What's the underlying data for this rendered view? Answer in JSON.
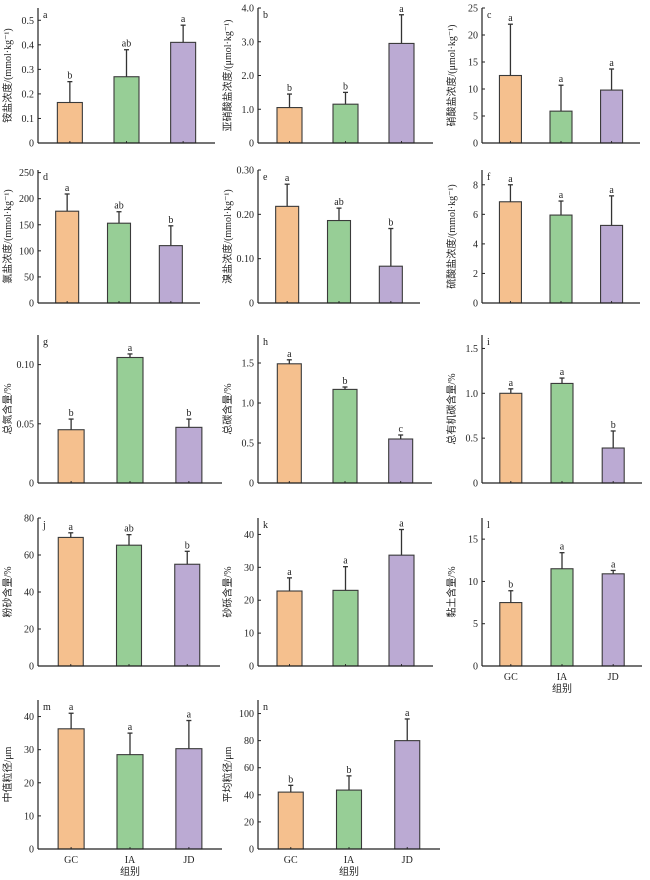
{
  "colors": {
    "GC": "#F5C08E",
    "IA": "#97CE96",
    "JD": "#BBAAD3",
    "outline": "#3a3a3a",
    "axis": "#222222"
  },
  "chart_data": [
    {
      "type": "bar",
      "panel": "a",
      "categories": [
        "GC",
        "IA",
        "JD"
      ],
      "ylabel": "铵盐浓度/(mmol·kg⁻¹)",
      "values": [
        0.165,
        0.27,
        0.41
      ],
      "error_upper": [
        0.25,
        0.38,
        0.48
      ],
      "significance": [
        "b",
        "ab",
        "a"
      ],
      "ylim": [
        0,
        0.55
      ],
      "yticks": [
        0,
        0.1,
        0.2,
        0.3,
        0.4,
        0.5
      ],
      "ytick_labels": [
        "0",
        "0.1",
        "0.2",
        "0.3",
        "0.4",
        "0.5"
      ],
      "xlabel": "",
      "show_xticks": false
    },
    {
      "type": "bar",
      "panel": "b",
      "categories": [
        "GC",
        "IA",
        "JD"
      ],
      "ylabel": "亚硝酸盐浓度/(μmol·kg⁻¹)",
      "values": [
        1.05,
        1.15,
        2.95
      ],
      "error_upper": [
        1.45,
        1.5,
        3.8
      ],
      "significance": [
        "b",
        "b",
        "a"
      ],
      "ylim": [
        0,
        4.0
      ],
      "yticks": [
        0,
        1,
        2,
        3,
        4
      ],
      "ytick_labels": [
        "0",
        "1.0",
        "2.0",
        "3.0",
        "4.0"
      ],
      "xlabel": "",
      "show_xticks": false
    },
    {
      "type": "bar",
      "panel": "c",
      "categories": [
        "GC",
        "IA",
        "JD"
      ],
      "ylabel": "硝酸盐浓度/(μmol·kg⁻¹)",
      "values": [
        12.5,
        5.9,
        9.8
      ],
      "error_upper": [
        22,
        10.7,
        13.7
      ],
      "significance": [
        "a",
        "a",
        "a"
      ],
      "ylim": [
        0,
        25
      ],
      "yticks": [
        0,
        5,
        10,
        15,
        20,
        25
      ],
      "ytick_labels": [
        "0",
        "5",
        "10",
        "15",
        "20",
        "25"
      ],
      "xlabel": "",
      "show_xticks": false
    },
    {
      "type": "bar",
      "panel": "d",
      "categories": [
        "GC",
        "IA",
        "JD"
      ],
      "ylabel": "氯盐浓度/(mmol·kg⁻¹)",
      "values": [
        176,
        153,
        110
      ],
      "error_upper": [
        209,
        175,
        148
      ],
      "significance": [
        "a",
        "ab",
        "b"
      ],
      "ylim": [
        0,
        255
      ],
      "yticks": [
        0,
        50,
        100,
        150,
        200,
        250
      ],
      "ytick_labels": [
        "0",
        "50",
        "100",
        "150",
        "200",
        "250"
      ],
      "xlabel": "",
      "show_xticks": false
    },
    {
      "type": "bar",
      "panel": "e",
      "categories": [
        "GC",
        "IA",
        "JD"
      ],
      "ylabel": "溴盐浓度/(mmol·kg⁻¹)",
      "values": [
        0.218,
        0.186,
        0.083
      ],
      "error_upper": [
        0.268,
        0.214,
        0.168
      ],
      "significance": [
        "a",
        "ab",
        "b"
      ],
      "ylim": [
        0,
        0.3
      ],
      "yticks": [
        0,
        0.1,
        0.2,
        0.3
      ],
      "ytick_labels": [
        "0",
        "0.10",
        "0.20",
        "0.30"
      ],
      "xlabel": "",
      "show_xticks": false
    },
    {
      "type": "bar",
      "panel": "f",
      "categories": [
        "GC",
        "IA",
        "JD"
      ],
      "ylabel": "硫酸盐浓度/(mmol·kg⁻¹)",
      "values": [
        6.85,
        5.95,
        5.25
      ],
      "error_upper": [
        8.0,
        6.9,
        7.25
      ],
      "significance": [
        "a",
        "a",
        "a"
      ],
      "ylim": [
        0,
        9
      ],
      "yticks": [
        0,
        2,
        4,
        6,
        8
      ],
      "ytick_labels": [
        "0",
        "2",
        "4",
        "6",
        "8"
      ],
      "xlabel": "",
      "show_xticks": false
    },
    {
      "type": "bar",
      "panel": "g",
      "categories": [
        "GC",
        "IA",
        "JD"
      ],
      "ylabel": "总氮含量/%",
      "values": [
        0.045,
        0.106,
        0.047
      ],
      "error_upper": [
        0.054,
        0.109,
        0.054
      ],
      "significance": [
        "b",
        "a",
        "b"
      ],
      "ylim": [
        0,
        0.125
      ],
      "yticks": [
        0,
        0.05,
        0.1
      ],
      "ytick_labels": [
        "0",
        "0.05",
        "0.10"
      ],
      "xlabel": "",
      "show_xticks": false
    },
    {
      "type": "bar",
      "panel": "h",
      "categories": [
        "GC",
        "IA",
        "JD"
      ],
      "ylabel": "总碳含量/%",
      "values": [
        1.49,
        1.17,
        0.55
      ],
      "error_upper": [
        1.54,
        1.2,
        0.6
      ],
      "significance": [
        "a",
        "b",
        "c"
      ],
      "ylim": [
        0,
        1.85
      ],
      "yticks": [
        0,
        0.5,
        1.0,
        1.5
      ],
      "ytick_labels": [
        "0",
        "0.5",
        "1.0",
        "1.5"
      ],
      "xlabel": "",
      "show_xticks": false
    },
    {
      "type": "bar",
      "panel": "i",
      "categories": [
        "GC",
        "IA",
        "JD"
      ],
      "ylabel": "总有机碳含量/%",
      "values": [
        1.0,
        1.11,
        0.39
      ],
      "error_upper": [
        1.05,
        1.17,
        0.58
      ],
      "significance": [
        "a",
        "a",
        "b"
      ],
      "ylim": [
        0,
        1.65
      ],
      "yticks": [
        0,
        0.5,
        1.0,
        1.5
      ],
      "ytick_labels": [
        "0",
        "0.5",
        "1.0",
        "1.5"
      ],
      "xlabel": "",
      "show_xticks": false
    },
    {
      "type": "bar",
      "panel": "j",
      "categories": [
        "GC",
        "IA",
        "JD"
      ],
      "ylabel": "粉砂含量/%",
      "values": [
        69.5,
        65.3,
        55
      ],
      "error_upper": [
        72,
        71,
        62
      ],
      "significance": [
        "a",
        "ab",
        "b"
      ],
      "ylim": [
        0,
        80
      ],
      "yticks": [
        0,
        20,
        40,
        60,
        80
      ],
      "ytick_labels": [
        "0",
        "20",
        "40",
        "60",
        "80"
      ],
      "xlabel": "",
      "show_xticks": false
    },
    {
      "type": "bar",
      "panel": "k",
      "categories": [
        "GC",
        "IA",
        "JD"
      ],
      "ylabel": "砂砾含量/%",
      "values": [
        22.8,
        23,
        33.7
      ],
      "error_upper": [
        26.8,
        30.2,
        41.5
      ],
      "significance": [
        "a",
        "a",
        "a"
      ],
      "ylim": [
        0,
        45
      ],
      "yticks": [
        0,
        10,
        20,
        30,
        40
      ],
      "ytick_labels": [
        "0",
        "10",
        "20",
        "30",
        "40"
      ],
      "xlabel": "",
      "show_xticks": false
    },
    {
      "type": "bar",
      "panel": "l",
      "categories": [
        "GC",
        "IA",
        "JD"
      ],
      "ylabel": "黏土含量/%",
      "values": [
        7.5,
        11.5,
        10.9
      ],
      "error_upper": [
        8.9,
        13.4,
        11.3
      ],
      "significance": [
        "b",
        "a",
        "a"
      ],
      "ylim": [
        0,
        17.5
      ],
      "yticks": [
        0,
        5,
        10,
        15
      ],
      "ytick_labels": [
        "0",
        "5",
        "10",
        "15"
      ],
      "xlabel": "组别",
      "show_xticks": true
    },
    {
      "type": "bar",
      "panel": "m",
      "categories": [
        "GC",
        "IA",
        "JD"
      ],
      "ylabel": "中值粒径/μm",
      "values": [
        36.3,
        28.5,
        30.3
      ],
      "error_upper": [
        41,
        35,
        38.8
      ],
      "significance": [
        "a",
        "a",
        "a"
      ],
      "ylim": [
        0,
        45
      ],
      "yticks": [
        0,
        10,
        20,
        30,
        40
      ],
      "ytick_labels": [
        "0",
        "10",
        "20",
        "30",
        "40"
      ],
      "xlabel": "组别",
      "show_xticks": true
    },
    {
      "type": "bar",
      "panel": "n",
      "categories": [
        "GC",
        "IA",
        "JD"
      ],
      "ylabel": "平均粒径/μm",
      "values": [
        42,
        43.5,
        80
      ],
      "error_upper": [
        47,
        54,
        96
      ],
      "significance": [
        "b",
        "b",
        "a"
      ],
      "ylim": [
        0,
        110
      ],
      "yticks": [
        0,
        20,
        40,
        60,
        80,
        100
      ],
      "ytick_labels": [
        "0",
        "20",
        "40",
        "60",
        "80",
        "100"
      ],
      "xlabel": "组别",
      "show_xticks": true
    }
  ]
}
